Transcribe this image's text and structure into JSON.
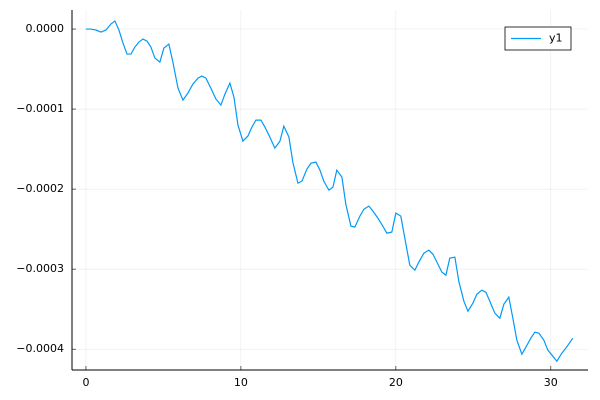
{
  "chart_data": {
    "type": "line",
    "x": [
      0,
      0.32,
      0.65,
      0.97,
      1.29,
      1.61,
      1.87,
      2.13,
      2.39,
      2.65,
      2.9,
      3.16,
      3.42,
      3.68,
      3.94,
      4.19,
      4.45,
      4.77,
      5.03,
      5.35,
      5.61,
      5.94,
      6.26,
      6.58,
      6.9,
      7.23,
      7.48,
      7.74,
      8.06,
      8.39,
      8.71,
      8.97,
      9.29,
      9.55,
      9.81,
      10.13,
      10.45,
      10.71,
      10.97,
      11.29,
      11.55,
      11.87,
      12.19,
      12.52,
      12.77,
      13.1,
      13.35,
      13.68,
      13.94,
      14.26,
      14.52,
      14.84,
      15.1,
      15.35,
      15.68,
      15.94,
      16.19,
      16.52,
      16.77,
      17.1,
      17.35,
      17.68,
      17.94,
      18.26,
      18.52,
      18.84,
      19.16,
      19.42,
      19.74,
      20,
      20.32,
      20.65,
      20.9,
      21.23,
      21.48,
      21.81,
      22.13,
      22.39,
      22.65,
      22.97,
      23.23,
      23.48,
      23.81,
      24.06,
      24.39,
      24.65,
      24.97,
      25.23,
      25.55,
      25.81,
      26.06,
      26.39,
      26.71,
      26.97,
      27.29,
      27.55,
      27.81,
      28.13,
      28.39,
      28.71,
      28.97,
      29.23,
      29.55,
      29.81,
      30.13,
      30.39,
      30.71,
      30.97,
      31.42
    ],
    "series": [
      {
        "name": "y1",
        "color": "#009af9",
        "values": [
          0,
          0,
          -1.25e-06,
          -3.75e-06,
          -1.25e-06,
          6.25e-06,
          1e-05,
          -1.25e-06,
          -1.75e-05,
          -3.125e-05,
          -3.125e-05,
          -2.25e-05,
          -1.625e-05,
          -1.25e-05,
          -1.5e-05,
          -2.25e-05,
          -3.625e-05,
          -4.125e-05,
          -2.375e-05,
          -1.875e-05,
          -4.125e-05,
          -7.375e-05,
          -8.875e-05,
          -8e-05,
          -6.875e-05,
          -6.125e-05,
          -5.875e-05,
          -6.125e-05,
          -7.375e-05,
          -8.75e-05,
          -9.5e-05,
          -8.125e-05,
          -6.75e-05,
          -8.5e-05,
          -0.00012,
          -0.00014,
          -0.00013375,
          -0.0001225,
          -0.00011375,
          -0.00011375,
          -0.0001225,
          -0.000135,
          -0.00014875,
          -0.00014,
          -0.00012125,
          -0.000135,
          -0.00016625,
          -0.0001925,
          -0.00019,
          -0.000175,
          -0.0001675,
          -0.00016625,
          -0.00017625,
          -0.00019,
          -0.00020125,
          -0.0001975,
          -0.00017625,
          -0.000185,
          -0.00021875,
          -0.00024625,
          -0.0002475,
          -0.00023375,
          -0.000225,
          -0.00022125,
          -0.0002275,
          -0.00023625,
          -0.00024625,
          -0.000255,
          -0.00025375,
          -0.00023,
          -0.00023375,
          -0.00026875,
          -0.000295,
          -0.00030125,
          -0.00029125,
          -0.00028,
          -0.00027625,
          -0.00028125,
          -0.00029125,
          -0.00030375,
          -0.0003075,
          -0.00028625,
          -0.000285,
          -0.000315,
          -0.00034,
          -0.0003525,
          -0.0003425,
          -0.00033125,
          -0.00032625,
          -0.00032875,
          -0.00034,
          -0.000355,
          -0.00036125,
          -0.00034375,
          -0.000335,
          -0.00036125,
          -0.00038875,
          -0.00040625,
          -0.0003975,
          -0.00038625,
          -0.00037875,
          -0.00038,
          -0.00038875,
          -0.00040125,
          -0.00040875,
          -0.000415,
          -0.000405,
          -0.00039875,
          -0.00038625
        ]
      }
    ],
    "xlim": [
      -0.9,
      32.4
    ],
    "xticks": [
      0,
      10,
      20,
      30
    ],
    "ylim": [
      -0.000426,
      2.38e-05
    ],
    "yticks": [
      {
        "value": 0,
        "label": "0.0000"
      },
      {
        "value": -0.0001,
        "label": "−0.0001"
      },
      {
        "value": -0.0002,
        "label": "−0.0002"
      },
      {
        "value": -0.0003,
        "label": "−0.0003"
      },
      {
        "value": -0.0004,
        "label": "−0.0004"
      }
    ],
    "grid": true,
    "legend": "top-right"
  }
}
